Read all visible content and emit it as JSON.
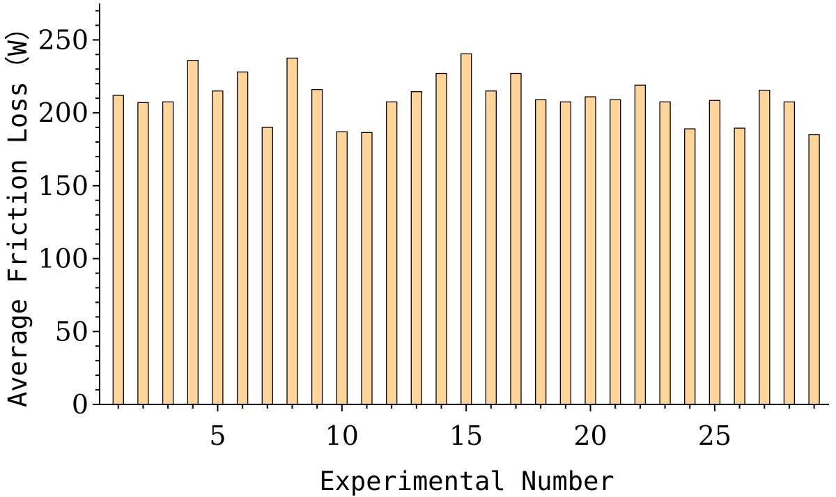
{
  "chart_data": {
    "type": "bar",
    "xlabel": "Experimental Number",
    "ylabel": "Average Friction Loss（W）",
    "x": [
      1,
      2,
      3,
      4,
      5,
      6,
      7,
      8,
      9,
      10,
      11,
      12,
      13,
      14,
      15,
      16,
      17,
      18,
      19,
      20,
      21,
      22,
      23,
      24,
      25,
      26,
      27,
      28,
      29
    ],
    "values": [
      212,
      207,
      207.5,
      236,
      215,
      228,
      190,
      237.5,
      216,
      187,
      186.5,
      207.5,
      214.5,
      227,
      240.5,
      215,
      227,
      209,
      207.5,
      211,
      209,
      219,
      207.5,
      189,
      208.5,
      189.5,
      215.5,
      207.5,
      185
    ],
    "xlim": [
      0.25,
      29.6
    ],
    "ylim": [
      0,
      275
    ],
    "x_ticks": [
      5,
      10,
      15,
      20,
      25
    ],
    "x_tick_labels": [
      "5",
      "10",
      "15",
      "20",
      "25"
    ],
    "y_ticks": [
      0,
      50,
      100,
      150,
      200,
      250
    ],
    "y_tick_labels": [
      "0",
      "50",
      "100",
      "150",
      "200",
      "250"
    ],
    "grid": false,
    "bar_color": "#FFD59A"
  }
}
